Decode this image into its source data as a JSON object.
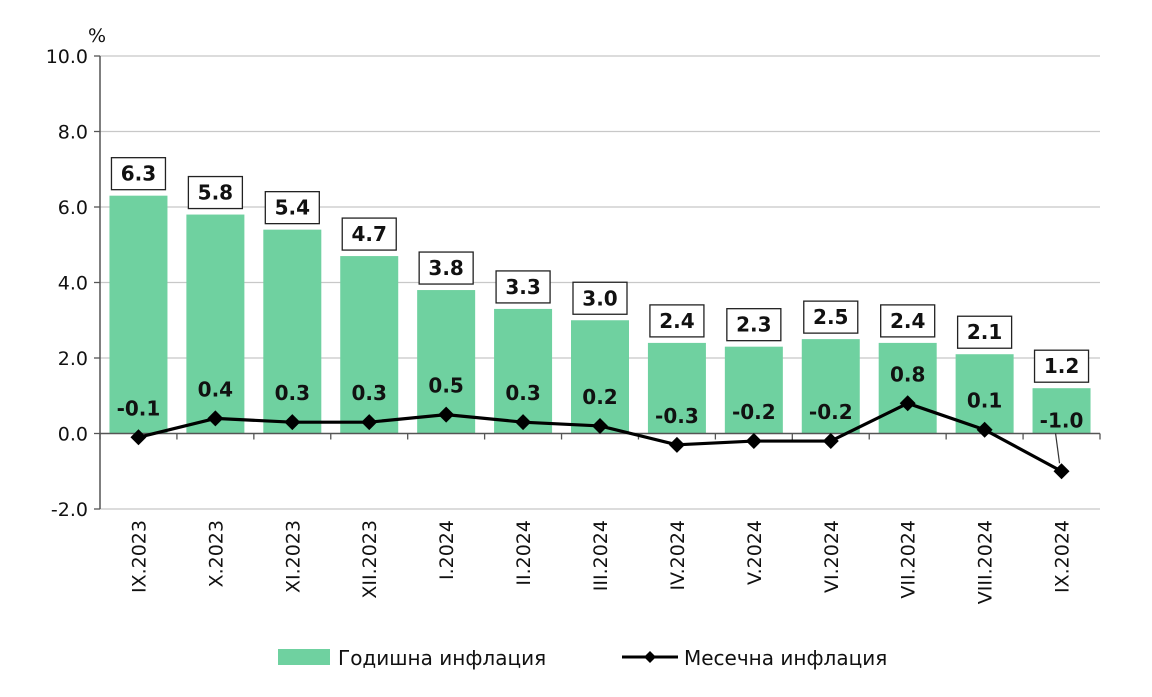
{
  "chart_data": {
    "type": "bar",
    "unit": "%",
    "categories": [
      "IX.2023",
      "X.2023",
      "XI.2023",
      "XII.2023",
      "I.2024",
      "II.2024",
      "III.2024",
      "IV.2024",
      "V.2024",
      "VI.2024",
      "VII.2024",
      "VIII.2024",
      "IX.2024"
    ],
    "series": [
      {
        "name": "Годишна инфлация",
        "type": "bar",
        "color": "#6fd1a0",
        "values": [
          6.3,
          5.8,
          5.4,
          4.7,
          3.8,
          3.3,
          3.0,
          2.4,
          2.3,
          2.5,
          2.4,
          2.1,
          1.2
        ],
        "labels": [
          "6.3",
          "5.8",
          "5.4",
          "4.7",
          "3.8",
          "3.3",
          "3.0",
          "2.4",
          "2.3",
          "2.5",
          "2.4",
          "2.1",
          "1.2"
        ]
      },
      {
        "name": "Месечна инфлация",
        "type": "line",
        "color": "#000000",
        "values": [
          -0.1,
          0.4,
          0.3,
          0.3,
          0.5,
          0.3,
          0.2,
          -0.3,
          -0.2,
          -0.2,
          0.8,
          0.1,
          -1.0
        ],
        "labels": [
          "-0.1",
          "0.4",
          "0.3",
          "0.3",
          "0.5",
          "0.3",
          "0.2",
          "-0.3",
          "-0.2",
          "-0.2",
          "0.8",
          "0.1",
          "-1.0"
        ]
      }
    ],
    "ylim": [
      -2.0,
      10.0
    ],
    "yticks": [
      "-2.0",
      "0.0",
      "2.0",
      "4.0",
      "6.0",
      "8.0",
      "10.0"
    ],
    "grid": true,
    "legend": "bottom"
  }
}
